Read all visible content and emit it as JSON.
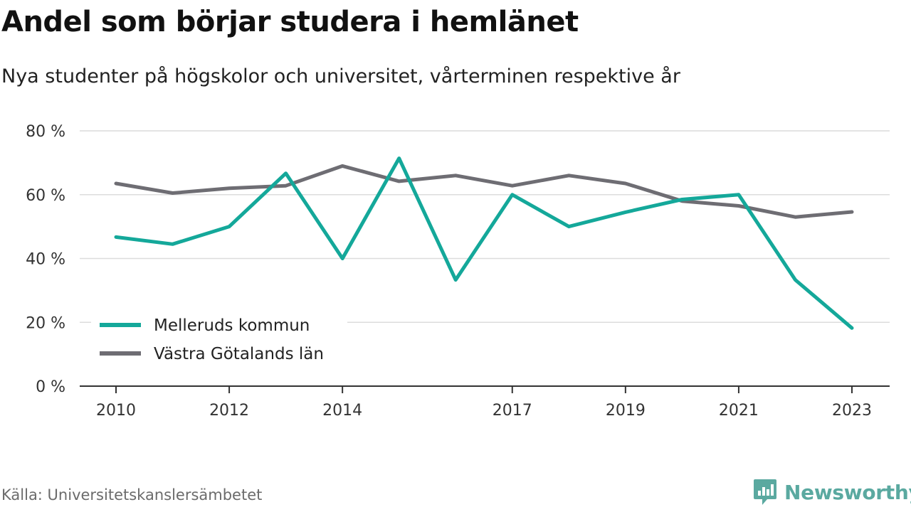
{
  "header": {
    "title": "Andel som börjar studera i hemlänet",
    "subtitle": "Nya studenter på högskolor och universitet, vårterminen respektive år"
  },
  "footer": {
    "source": "Källa: Universitetskanslersämbetet",
    "brand": "Newsworthy"
  },
  "colors": {
    "melleruds": "#14a89a",
    "vastra": "#6e6d73",
    "grid": "#dcdcdc",
    "axis": "#333333",
    "brand": "#5aa9a0"
  },
  "chart_data": {
    "type": "line",
    "x": [
      2010,
      2011,
      2012,
      2013,
      2014,
      2015,
      2016,
      2017,
      2018,
      2019,
      2020,
      2021,
      2022,
      2023
    ],
    "x_tick_values": [
      2010,
      2012,
      2014,
      2017,
      2019,
      2021,
      2023
    ],
    "x_tick_labels": [
      "2010",
      "2012",
      "2014",
      "2017",
      "2019",
      "2021",
      "2023"
    ],
    "y_tick_values": [
      0,
      20,
      40,
      60,
      80
    ],
    "y_tick_labels": [
      "0 %",
      "20 %",
      "40 %",
      "60 %",
      "80 %"
    ],
    "ylim": [
      0,
      80
    ],
    "grid": true,
    "legend_position": "bottom-left",
    "series": [
      {
        "name": "Melleruds kommun",
        "color": "#14a89a",
        "values": [
          46.7,
          44.5,
          50.0,
          66.7,
          40.0,
          71.4,
          33.3,
          60.0,
          50.0,
          54.5,
          58.5,
          60.0,
          33.3,
          18.2
        ]
      },
      {
        "name": "Västra Götalands län",
        "color": "#6e6d73",
        "values": [
          63.5,
          60.5,
          62.0,
          62.8,
          69.0,
          64.2,
          66.0,
          62.8,
          66.0,
          63.5,
          58.0,
          56.5,
          53.0,
          54.6
        ]
      }
    ]
  }
}
